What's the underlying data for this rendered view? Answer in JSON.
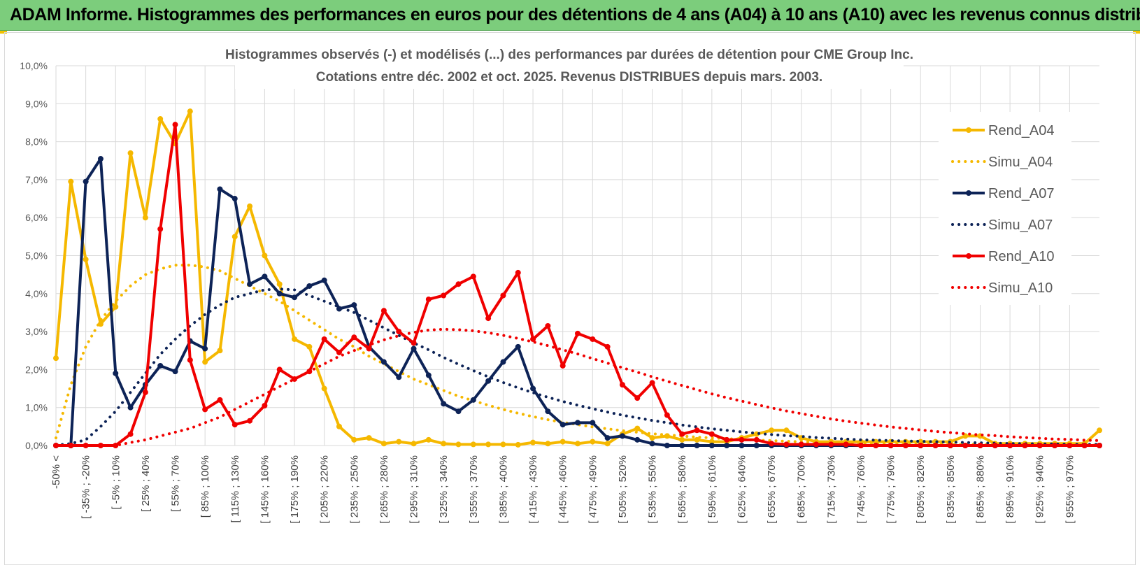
{
  "banner": {
    "title": "ADAM Informe. Histogrammes des performances en euros pour des détentions de 4 ans (A04) à 10 ans (A10) avec les revenus connus distribués"
  },
  "chart_data": {
    "type": "line",
    "title": "Histogrammes observés (-) et modélisés (...) des performances par durées de détention pour CME Group Inc.",
    "subtitle": "Cotations entre déc. 2002 et oct. 2025. Revenus DISTRIBUES depuis mars. 2003.",
    "xlabel": "",
    "ylabel": "",
    "ylim": [
      0,
      0.1
    ],
    "yticks": [
      "0,0%",
      "1,0%",
      "2,0%",
      "3,0%",
      "4,0%",
      "5,0%",
      "6,0%",
      "7,0%",
      "8,0%",
      "9,0%",
      "10,0%"
    ],
    "grid": true,
    "legend_position": "right",
    "xtick_labels": [
      "-50% <",
      "[ -35% ; -20%",
      "[ -5% ; 10%",
      "[ 25% ; 40%",
      "[ 55% ; 70%",
      "[ 85% ; 100%",
      "[ 115% ; 130%",
      "[ 145% ; 160%",
      "[ 175% ; 190%",
      "[ 205% ; 220%",
      "[ 235% ; 250%",
      "[ 265% ; 280%",
      "[ 295% ; 310%",
      "[ 325% ; 340%",
      "[ 355% ; 370%",
      "[ 385% ; 400%",
      "[ 415% ; 430%",
      "[ 445% ; 460%",
      "[ 475% ; 490%",
      "[ 505% ; 520%",
      "[ 535% ; 550%",
      "[ 565% ; 580%",
      "[ 595% ; 610%",
      "[ 625% ; 640%",
      "[ 655% ; 670%",
      "[ 685% ; 700%",
      "[ 715% ; 730%",
      "[ 745% ; 760%",
      "[ 775% ; 790%",
      "[ 805% ; 820%",
      "[ 835% ; 850%",
      "[ 865% ; 880%",
      "[ 895% ; 910%",
      "[ 925% ; 940%",
      "[ 955% ; 970%"
    ],
    "series": [
      {
        "name": "Rend_A04",
        "color": "#f5b800",
        "style": "solid",
        "markers": true,
        "values": [
          0.023,
          0.0695,
          0.049,
          0.032,
          0.0365,
          0.077,
          0.06,
          0.086,
          0.0795,
          0.088,
          0.022,
          0.025,
          0.055,
          0.063,
          0.05,
          0.0425,
          0.028,
          0.026,
          0.015,
          0.005,
          0.0015,
          0.002,
          0.0005,
          0.001,
          0.0005,
          0.0015,
          0.0005,
          0.0003,
          0.0003,
          0.0003,
          0.0003,
          0.0002,
          0.0008,
          0.0005,
          0.001,
          0.0005,
          0.001,
          0.0005,
          0.003,
          0.0045,
          0.002,
          0.0025,
          0.0015,
          0.0015,
          0.001,
          0.001,
          0.002,
          0.003,
          0.004,
          0.004,
          0.002,
          0.001,
          0.001,
          0.001,
          0.001,
          0.001,
          0.001,
          0.001,
          0.001,
          0.001,
          0.001,
          0.0025,
          0.0025,
          0.0005,
          0.0005,
          0.0005,
          0.0005,
          0.0005,
          0.0005,
          0.0005,
          0.004
        ]
      },
      {
        "name": "Simu_A04",
        "color": "#f5b800",
        "style": "dotted",
        "markers": false,
        "values": [
          0.002,
          0.016,
          0.026,
          0.033,
          0.038,
          0.042,
          0.045,
          0.0465,
          0.0475,
          0.0475,
          0.047,
          0.046,
          0.044,
          0.042,
          0.04,
          0.038,
          0.0355,
          0.033,
          0.0305,
          0.028,
          0.026,
          0.0235,
          0.0215,
          0.0195,
          0.0175,
          0.016,
          0.0145,
          0.013,
          0.0118,
          0.0106,
          0.0095,
          0.0085,
          0.0076,
          0.0068,
          0.0061,
          0.0055,
          0.0049,
          0.0044,
          0.0039,
          0.0035,
          0.0031,
          0.0028,
          0.0025,
          0.0022,
          0.002,
          0.0018,
          0.0016,
          0.0014,
          0.0013,
          0.0011,
          0.001,
          0.0009,
          0.0008,
          0.0007,
          0.0006,
          0.0006,
          0.0005,
          0.0005,
          0.0004,
          0.0004,
          0.0003,
          0.0003,
          0.0003,
          0.0002,
          0.0002,
          0.0002,
          0.0002,
          0.0001,
          0.0001,
          0.0001,
          0.0001
        ]
      },
      {
        "name": "Rend_A07",
        "color": "#0d2357",
        "style": "solid",
        "markers": true,
        "values": [
          0,
          0,
          0.0695,
          0.0755,
          0.019,
          0.01,
          0.016,
          0.021,
          0.0195,
          0.0275,
          0.0255,
          0.0675,
          0.065,
          0.0425,
          0.0445,
          0.04,
          0.039,
          0.042,
          0.0435,
          0.036,
          0.037,
          0.026,
          0.022,
          0.018,
          0.0255,
          0.0185,
          0.011,
          0.009,
          0.012,
          0.017,
          0.022,
          0.026,
          0.015,
          0.009,
          0.0055,
          0.006,
          0.006,
          0.002,
          0.0025,
          0.0015,
          0.0005,
          0,
          0,
          0,
          0,
          0,
          0,
          0,
          0,
          0,
          0,
          0,
          0,
          0,
          0,
          0,
          0,
          0,
          0,
          0,
          0,
          0,
          0,
          0,
          0,
          0,
          0,
          0,
          0,
          0,
          0
        ]
      },
      {
        "name": "Simu_A07",
        "color": "#0d2357",
        "style": "dotted",
        "markers": false,
        "values": [
          0.0001,
          0.0005,
          0.0015,
          0.005,
          0.009,
          0.014,
          0.019,
          0.024,
          0.028,
          0.0315,
          0.0345,
          0.037,
          0.039,
          0.04,
          0.041,
          0.0412,
          0.041,
          0.0395,
          0.038,
          0.0365,
          0.035,
          0.033,
          0.031,
          0.029,
          0.027,
          0.0252,
          0.0232,
          0.0214,
          0.0197,
          0.0181,
          0.0166,
          0.0152,
          0.0139,
          0.0127,
          0.0116,
          0.0106,
          0.0097,
          0.0088,
          0.008,
          0.0073,
          0.0066,
          0.006,
          0.0054,
          0.0049,
          0.0044,
          0.004,
          0.0036,
          0.0032,
          0.0029,
          0.0026,
          0.0024,
          0.0021,
          0.0019,
          0.0017,
          0.0015,
          0.0014,
          0.0013,
          0.0012,
          0.0011,
          0.001,
          0.0009,
          0.0008,
          0.0007,
          0.0006,
          0.0005,
          0.0005,
          0.0004,
          0.0004,
          0.0003,
          0.0003,
          0.0003
        ]
      },
      {
        "name": "Rend_A10",
        "color": "#f00000",
        "style": "solid",
        "markers": true,
        "values": [
          0,
          0,
          0,
          0,
          0,
          0.003,
          0.014,
          0.057,
          0.0845,
          0.0225,
          0.0095,
          0.012,
          0.0055,
          0.0065,
          0.0105,
          0.02,
          0.0175,
          0.0195,
          0.028,
          0.0245,
          0.0285,
          0.0255,
          0.0355,
          0.03,
          0.027,
          0.0385,
          0.0395,
          0.0425,
          0.0445,
          0.0335,
          0.0395,
          0.0455,
          0.028,
          0.0315,
          0.021,
          0.0295,
          0.028,
          0.026,
          0.016,
          0.0125,
          0.0165,
          0.008,
          0.003,
          0.004,
          0.003,
          0.0015,
          0.0015,
          0.0015,
          0.0005,
          0.0003,
          0.0003,
          0.0003,
          0.0003,
          0.0003,
          0,
          0,
          0,
          0,
          0,
          0,
          0,
          0,
          0,
          0,
          0,
          0,
          0,
          0,
          0,
          0,
          0
        ]
      },
      {
        "name": "Simu_A10",
        "color": "#f00000",
        "style": "dotted",
        "markers": false,
        "values": [
          0,
          0,
          0,
          0,
          0,
          0.0008,
          0.0015,
          0.0025,
          0.0035,
          0.0045,
          0.006,
          0.0075,
          0.0095,
          0.0115,
          0.0135,
          0.0155,
          0.0175,
          0.0195,
          0.0215,
          0.0235,
          0.025,
          0.0265,
          0.0278,
          0.0289,
          0.0298,
          0.0304,
          0.0306,
          0.0305,
          0.0302,
          0.0297,
          0.029,
          0.0282,
          0.0273,
          0.0263,
          0.0252,
          0.0241,
          0.0229,
          0.0217,
          0.0205,
          0.0193,
          0.0181,
          0.0169,
          0.0158,
          0.0147,
          0.0136,
          0.0126,
          0.0117,
          0.0108,
          0.0099,
          0.0091,
          0.0084,
          0.0077,
          0.007,
          0.0064,
          0.0059,
          0.0054,
          0.0049,
          0.0045,
          0.0041,
          0.0037,
          0.0034,
          0.0031,
          0.0028,
          0.0026,
          0.0023,
          0.0021,
          0.0019,
          0.0017,
          0.0016,
          0.0014,
          0.0013
        ]
      }
    ]
  }
}
